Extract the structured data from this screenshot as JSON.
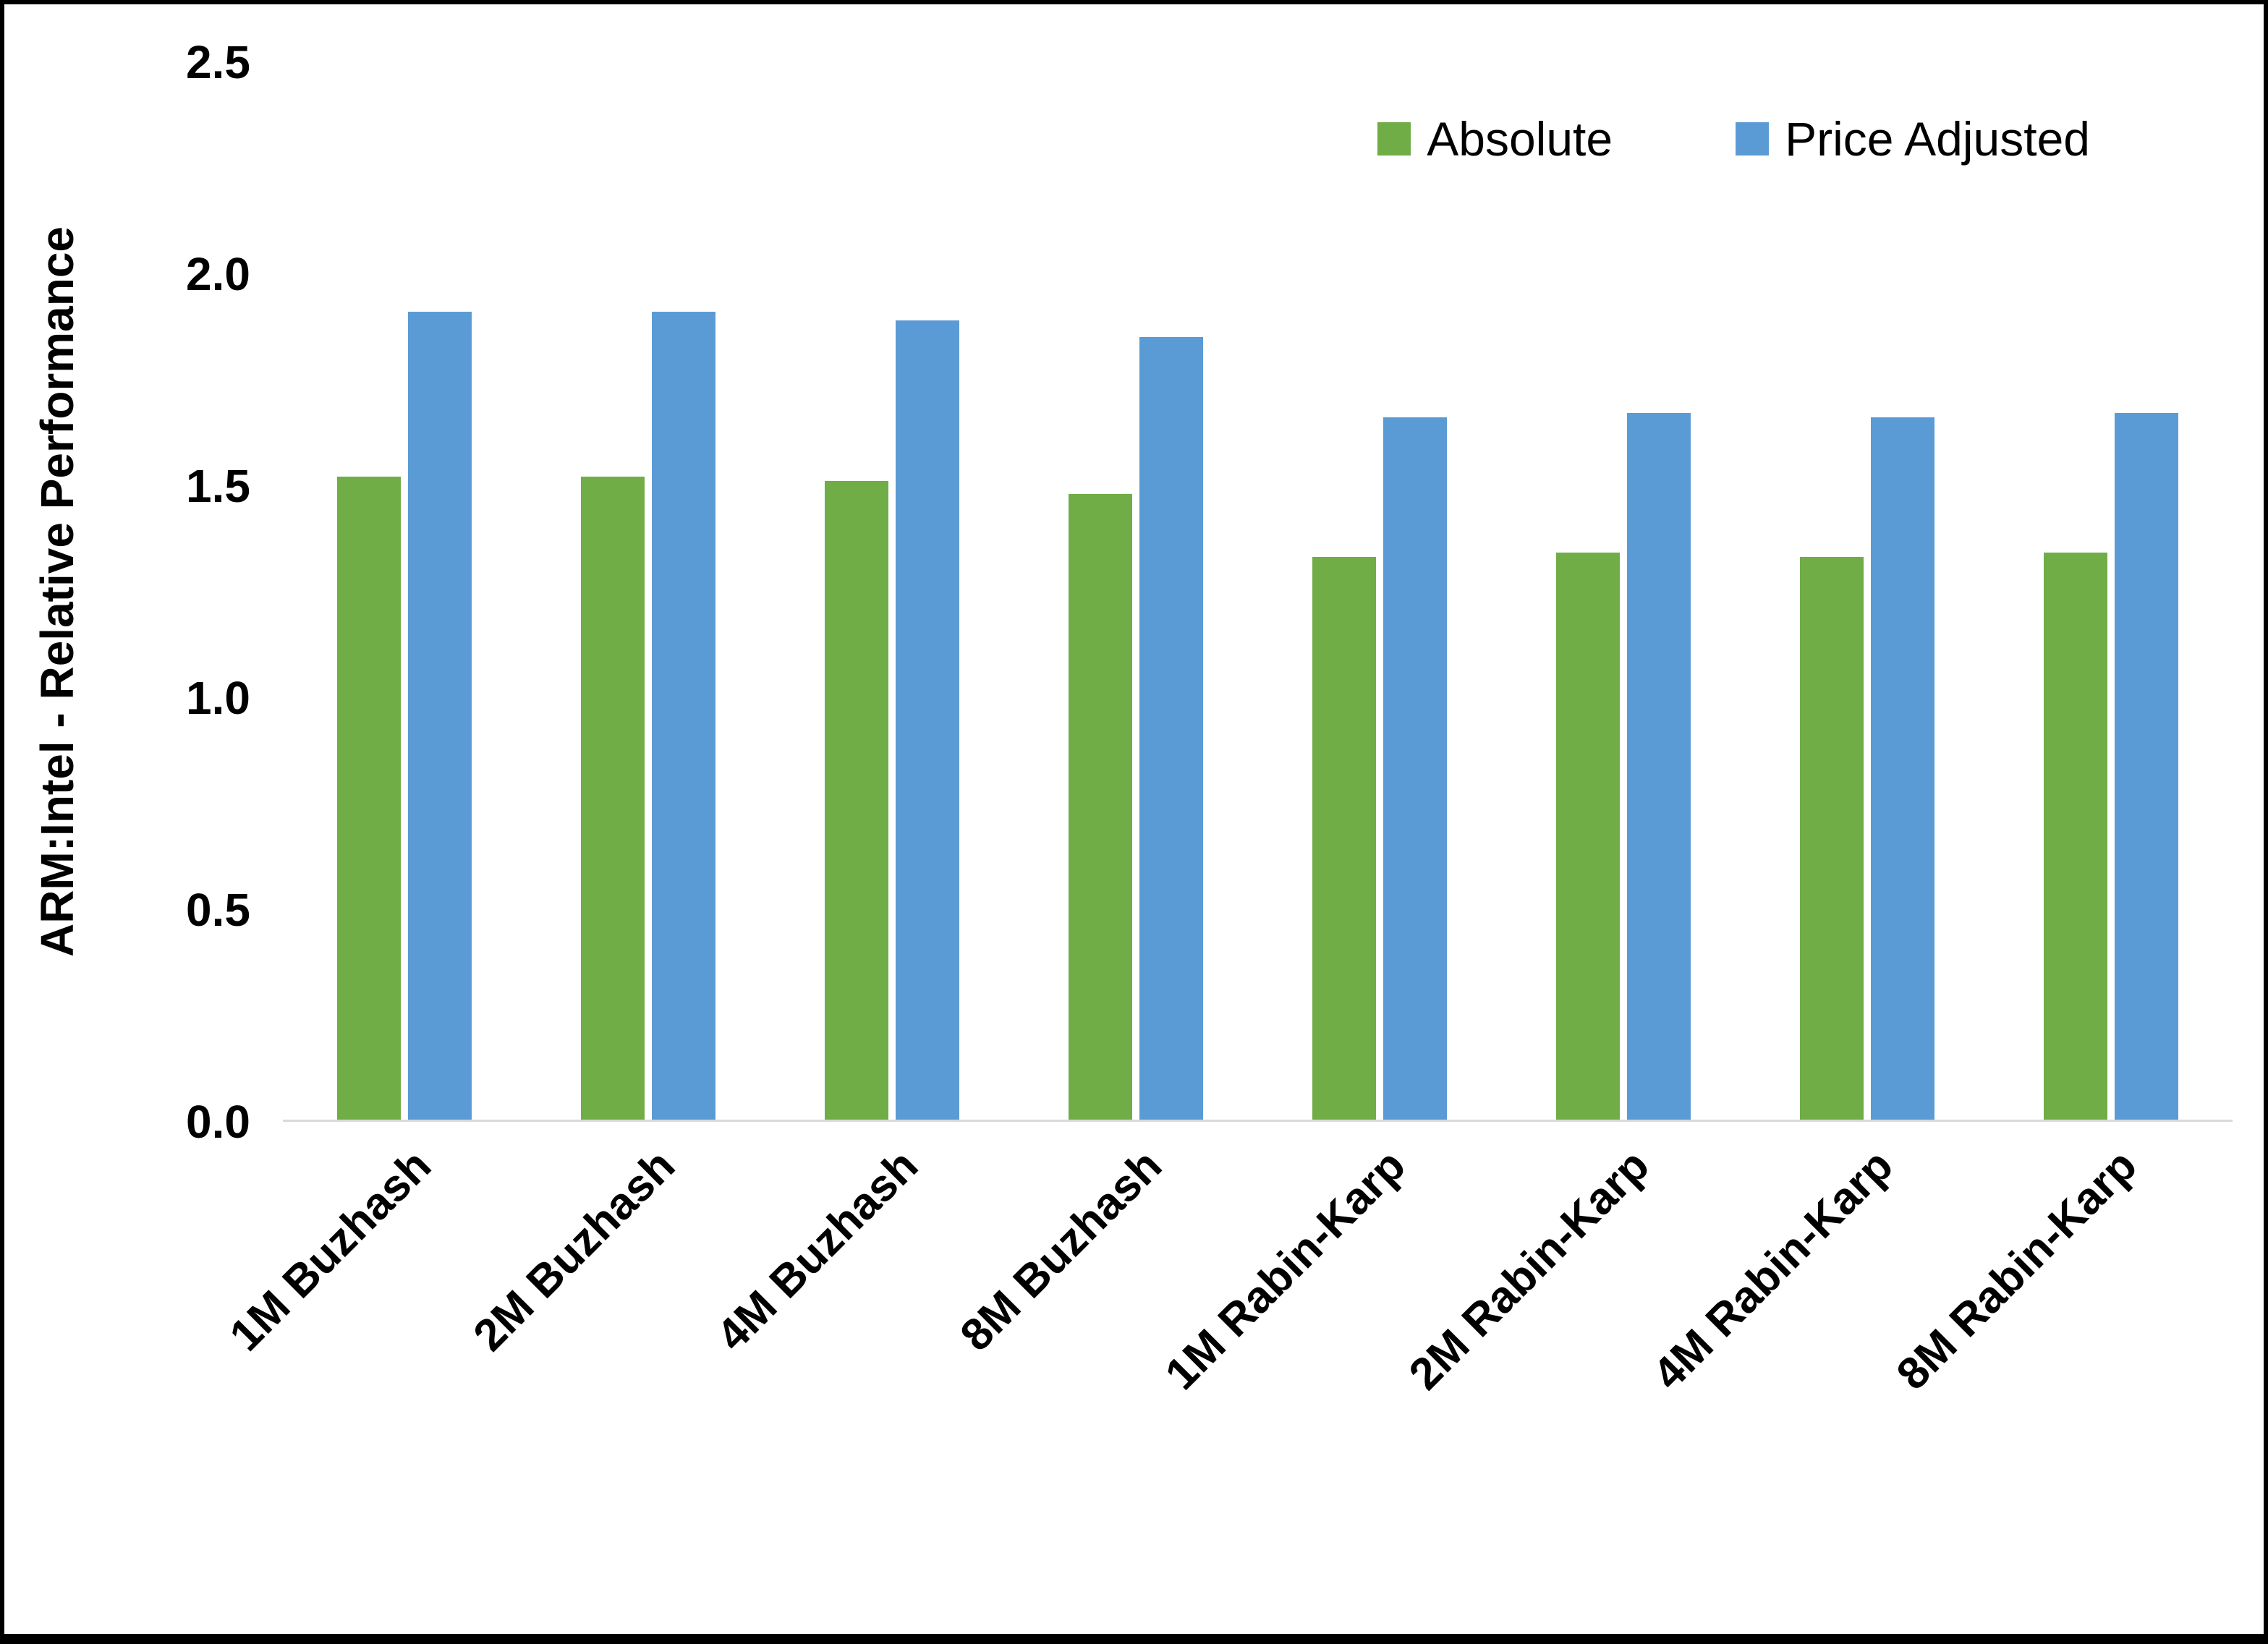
{
  "chart_data": {
    "type": "bar",
    "title": "",
    "xlabel": "",
    "ylabel": "ARM:Intel - Relative Performance",
    "ylim": [
      0,
      2.5
    ],
    "ytick_step": 0.5,
    "yticks": [
      "0.0",
      "0.5",
      "1.0",
      "1.5",
      "2.0",
      "2.5"
    ],
    "grid": false,
    "legend_position": "top-right",
    "baseline_color": "#d9d9d9",
    "categories": [
      "1M Buzhash",
      "2M Buzhash",
      "4M Buzhash",
      "8M Buzhash",
      "1M Rabin-Karp",
      "2M Rabin-Karp",
      "4M Rabin-Karp",
      "8M Rabin-Karp"
    ],
    "series": [
      {
        "name": "Absolute",
        "color": "#70AD47",
        "values": [
          1.52,
          1.52,
          1.51,
          1.48,
          1.33,
          1.34,
          1.33,
          1.34
        ]
      },
      {
        "name": "Price Adjusted",
        "color": "#5B9BD5",
        "values": [
          1.91,
          1.91,
          1.89,
          1.85,
          1.66,
          1.67,
          1.66,
          1.67
        ]
      }
    ]
  }
}
